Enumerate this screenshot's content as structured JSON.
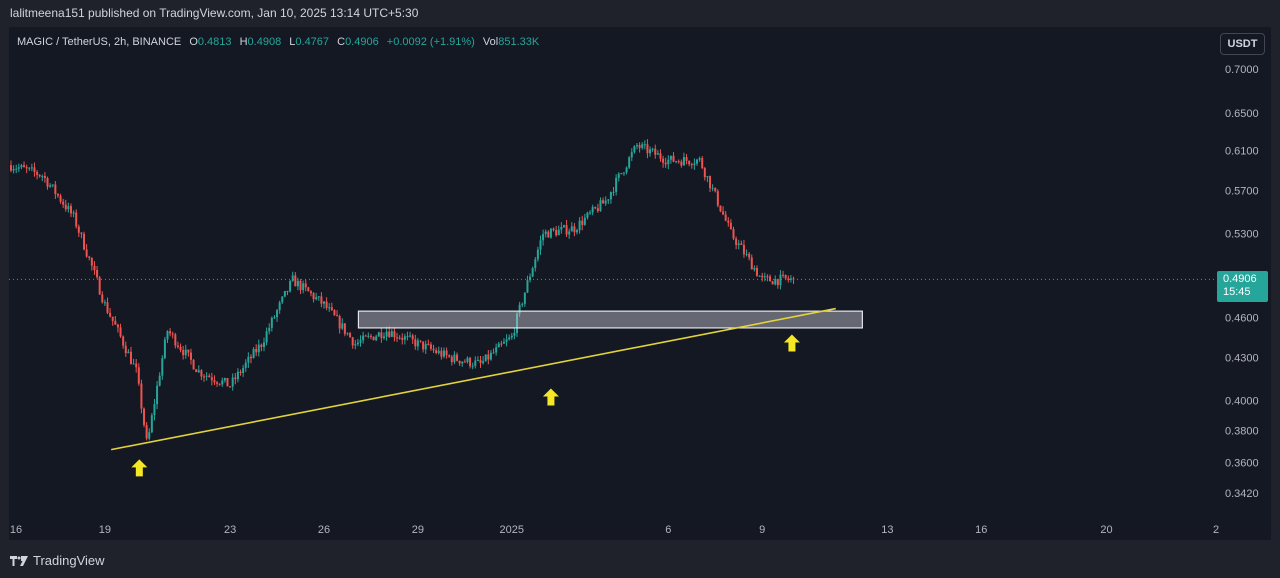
{
  "header": {
    "published_line": "lalitmeena151 published on TradingView.com, Jan 10, 2025 13:14 UTC+5:30"
  },
  "legend": {
    "symbol": "MAGIC / TetherUS, 2h, BINANCE",
    "o_label": "O",
    "o_value": "0.4813",
    "h_label": "H",
    "h_value": "0.4908",
    "l_label": "L",
    "l_value": "0.4767",
    "c_label": "C",
    "c_value": "0.4906",
    "change": "+0.0092 (+1.91%)",
    "vol_label": "Vol",
    "vol_value": "851.33K"
  },
  "currency_button": "USDT",
  "last_price": {
    "price": "0.4906",
    "countdown": "15:45"
  },
  "footer": {
    "brand": "TradingView"
  },
  "colors": {
    "up": "#26a69a",
    "down": "#ef5350",
    "trendline": "#e2d33c",
    "arrow": "#f5e626",
    "background": "#141823"
  },
  "chart_data": {
    "type": "candlestick",
    "y_ticks": [
      "0.7000",
      "0.6500",
      "0.6100",
      "0.5700",
      "0.5300",
      "0.4600",
      "0.4300",
      "0.4000",
      "0.3800",
      "0.3600",
      "0.3420"
    ],
    "x_ticks": [
      "16",
      "19",
      "23",
      "26",
      "29",
      "2025",
      "6",
      "9",
      "13",
      "16",
      "20",
      "2"
    ],
    "ylim": [
      0.33,
      0.75
    ],
    "log_scale": true,
    "grid": false,
    "series": [
      {
        "x": [
          "Dec 16",
          "Dec 17",
          "Dec 18",
          "Dec 19",
          "Dec 20",
          "Dec 20",
          "Dec 21",
          "Dec 22",
          "Dec 23",
          "Dec 24",
          "Dec 25",
          "Dec 26",
          "Dec 27",
          "Dec 28",
          "Dec 29",
          "Dec 30",
          "Dec 31",
          "Jan 1",
          "Jan 2",
          "Jan 3",
          "Jan 4",
          "Jan 5",
          "Jan 6",
          "Jan 7",
          "Jan 8",
          "Jan 9",
          "Jan 10"
        ],
        "close": [
          0.595,
          0.585,
          0.545,
          0.47,
          0.42,
          0.37,
          0.45,
          0.42,
          0.41,
          0.44,
          0.49,
          0.47,
          0.44,
          0.45,
          0.44,
          0.43,
          0.425,
          0.445,
          0.53,
          0.535,
          0.56,
          0.615,
          0.6,
          0.6,
          0.53,
          0.49,
          0.4906
        ]
      }
    ],
    "support_zone": [
      0.452,
      0.465
    ],
    "trendline": {
      "from": {
        "x": "Dec 20",
        "y": 0.368
      },
      "to": {
        "x": "Jan 11",
        "y": 0.467
      }
    },
    "markers": [
      "Dec 20",
      "Jan 2",
      "Jan 10"
    ]
  }
}
